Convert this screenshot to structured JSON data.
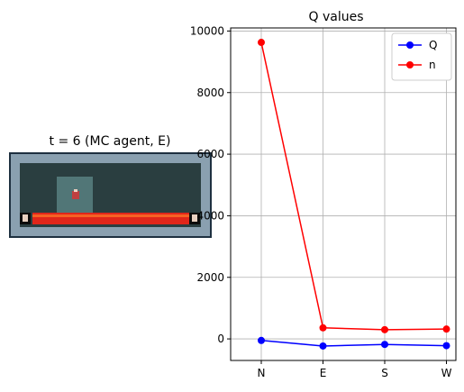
{
  "left_panel": {
    "title": "t = 6 (MC agent, E)",
    "colors": {
      "border": "#1e3040",
      "wall": "#8aa0b0",
      "floor": "#2a3e40",
      "lava": "#e0261a",
      "highlight": "#5f8a8a"
    }
  },
  "chart_data": {
    "type": "line",
    "title": "Q values",
    "xlabel": "",
    "ylabel": "",
    "categories": [
      "N",
      "E",
      "S",
      "W"
    ],
    "series": [
      {
        "name": "Q",
        "color": "#0000ff",
        "values": [
          -50,
          -230,
          -180,
          -220
        ]
      },
      {
        "name": "n",
        "color": "#ff0000",
        "values": [
          9630,
          360,
          300,
          320
        ]
      }
    ],
    "ylim": [
      -700,
      10100
    ],
    "yticks": [
      0,
      2000,
      4000,
      6000,
      8000,
      10000
    ],
    "grid": true,
    "legend_position": "top-right"
  }
}
